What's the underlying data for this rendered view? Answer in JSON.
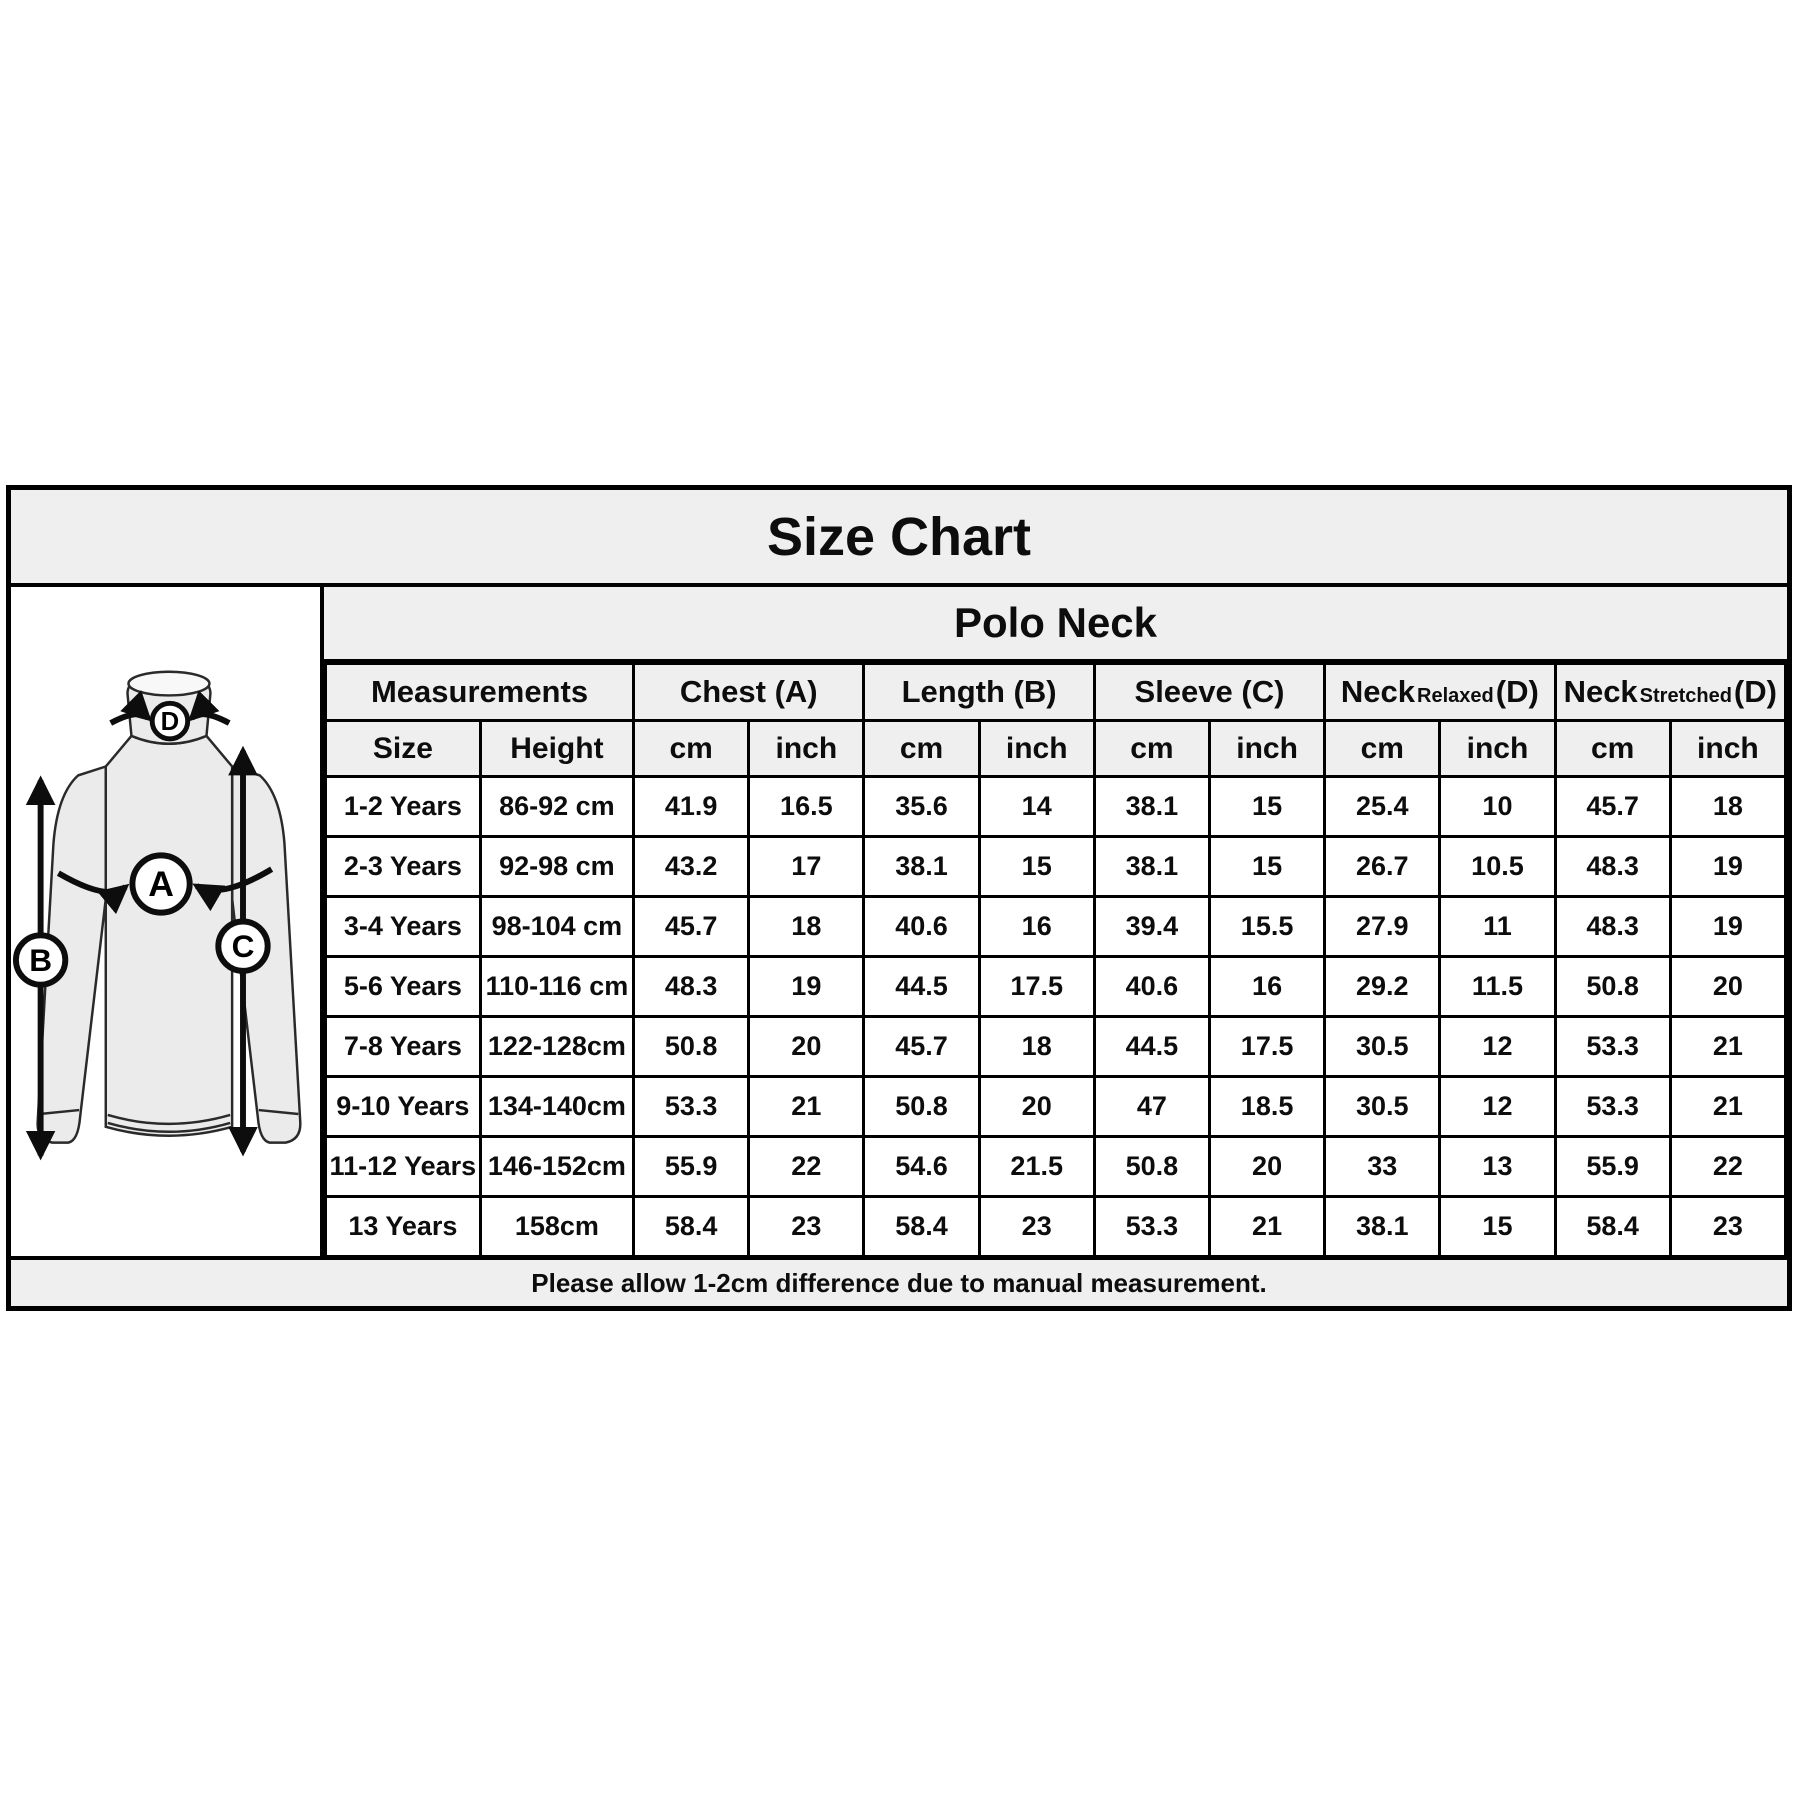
{
  "title": "Size Chart",
  "product": "Polo Neck",
  "table": {
    "measurements_label": "Measurements",
    "sub_headers": {
      "size": "Size",
      "height": "Height"
    },
    "units": {
      "cm": "cm",
      "inch": "inch"
    },
    "groups": [
      {
        "main": "Chest",
        "qualifier": "",
        "suffix": "(A)"
      },
      {
        "main": "Length",
        "qualifier": "",
        "suffix": "(B)"
      },
      {
        "main": "Sleeve",
        "qualifier": "",
        "suffix": "(C)"
      },
      {
        "main": "Neck",
        "qualifier": "Relaxed",
        "suffix": "(D)"
      },
      {
        "main": "Neck",
        "qualifier": "Stretched",
        "suffix": "(D)"
      }
    ],
    "rows": [
      {
        "size": "1-2 Years",
        "height": "86-92 cm",
        "values": [
          "41.9",
          "16.5",
          "35.6",
          "14",
          "38.1",
          "15",
          "25.4",
          "10",
          "45.7",
          "18"
        ]
      },
      {
        "size": "2-3 Years",
        "height": "92-98 cm",
        "values": [
          "43.2",
          "17",
          "38.1",
          "15",
          "38.1",
          "15",
          "26.7",
          "10.5",
          "48.3",
          "19"
        ]
      },
      {
        "size": "3-4 Years",
        "height": "98-104 cm",
        "values": [
          "45.7",
          "18",
          "40.6",
          "16",
          "39.4",
          "15.5",
          "27.9",
          "11",
          "48.3",
          "19"
        ]
      },
      {
        "size": "5-6 Years",
        "height": "110-116 cm",
        "values": [
          "48.3",
          "19",
          "44.5",
          "17.5",
          "40.6",
          "16",
          "29.2",
          "11.5",
          "50.8",
          "20"
        ]
      },
      {
        "size": "7-8 Years",
        "height": "122-128cm",
        "values": [
          "50.8",
          "20",
          "45.7",
          "18",
          "44.5",
          "17.5",
          "30.5",
          "12",
          "53.3",
          "21"
        ]
      },
      {
        "size": "9-10 Years",
        "height": "134-140cm",
        "values": [
          "53.3",
          "21",
          "50.8",
          "20",
          "47",
          "18.5",
          "30.5",
          "12",
          "53.3",
          "21"
        ]
      },
      {
        "size": "11-12 Years",
        "height": "146-152cm",
        "values": [
          "55.9",
          "22",
          "54.6",
          "21.5",
          "50.8",
          "20",
          "33",
          "13",
          "55.9",
          "22"
        ]
      },
      {
        "size": "13 Years",
        "height": "158cm",
        "values": [
          "58.4",
          "23",
          "58.4",
          "23",
          "53.3",
          "21",
          "38.1",
          "15",
          "58.4",
          "23"
        ]
      }
    ]
  },
  "footer_note": "Please allow 1-2cm difference due to manual measurement.",
  "figure": {
    "markers": [
      {
        "letter": "A"
      },
      {
        "letter": "B"
      },
      {
        "letter": "C"
      },
      {
        "letter": "D"
      }
    ]
  },
  "colors": {
    "header_bg": "#efefef",
    "border": "#000000",
    "cell_bg": "#ffffff",
    "text": "#0d0d0d"
  }
}
